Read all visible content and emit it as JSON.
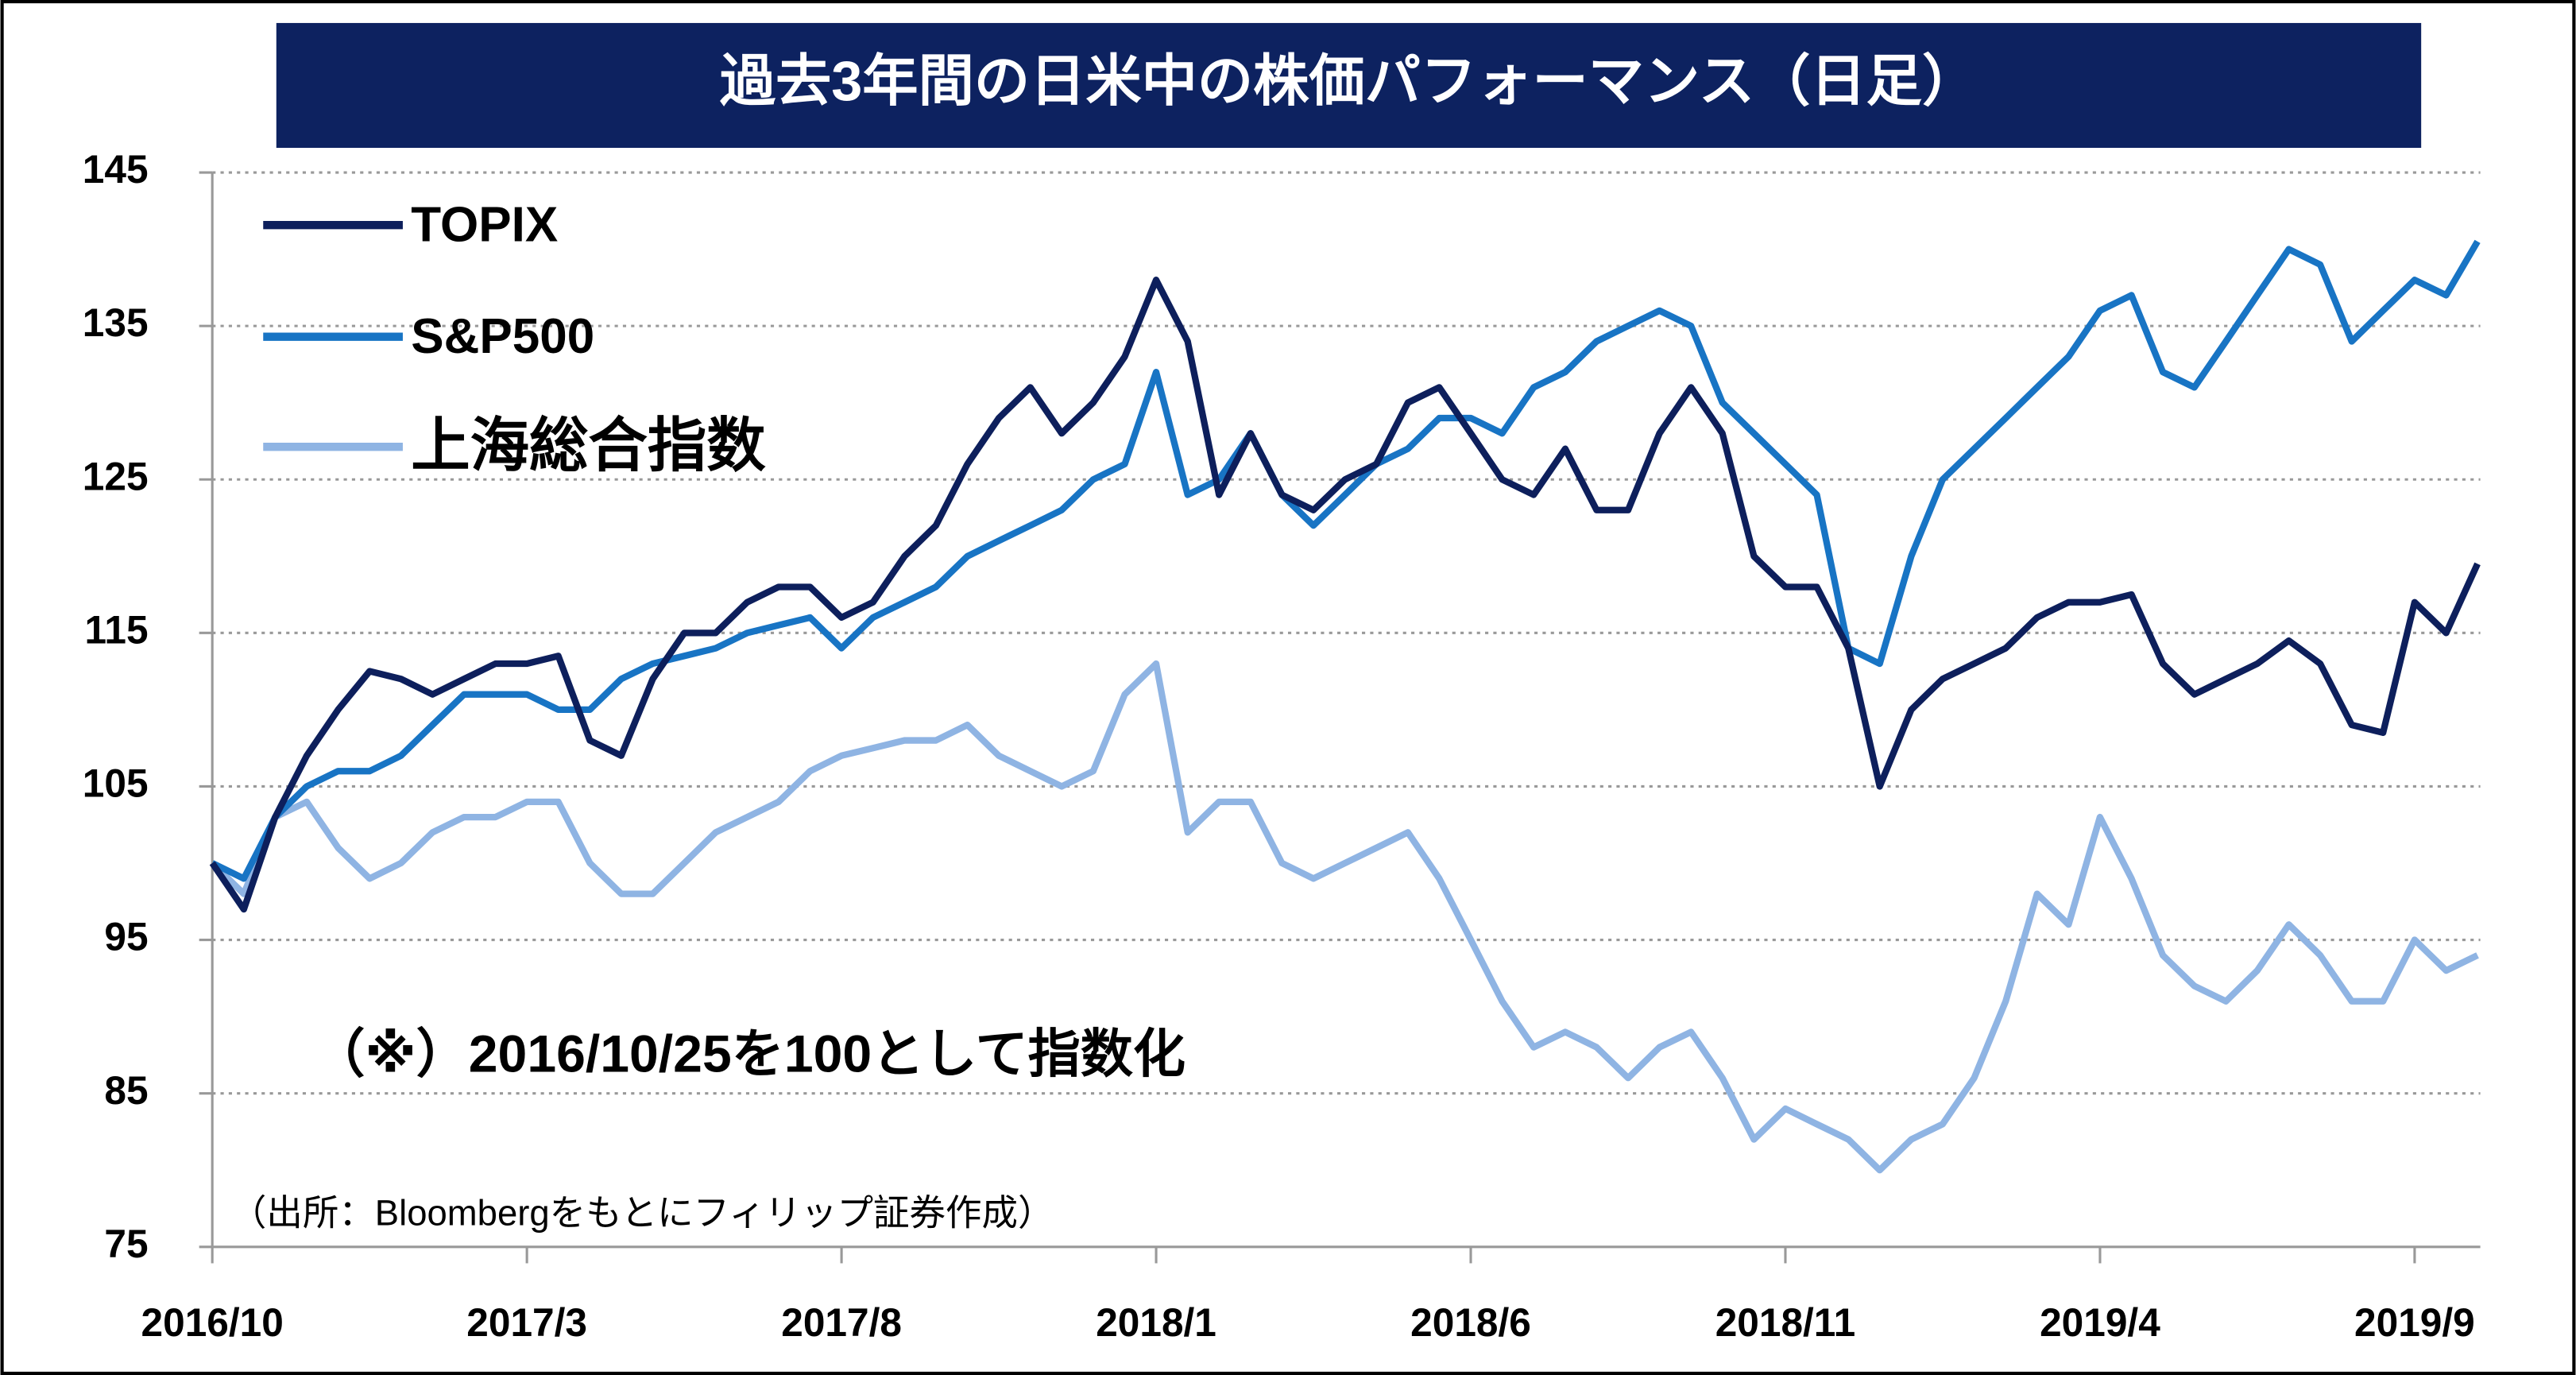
{
  "chart_data": {
    "type": "line",
    "title": "過去3年間の日米中の株価パフォーマンス（日足）",
    "annotations": [
      "（※）2016/10/25を100として指数化",
      "（出所：Bloombergをもとにフィリップ証券作成）"
    ],
    "categories": [
      "2016/10",
      null,
      null,
      null,
      null,
      null,
      null,
      null,
      null,
      null,
      "2017/3",
      null,
      null,
      null,
      null,
      null,
      null,
      null,
      null,
      null,
      "2017/8",
      null,
      null,
      null,
      null,
      null,
      null,
      null,
      null,
      null,
      "2018/1",
      null,
      null,
      null,
      null,
      null,
      null,
      null,
      null,
      null,
      "2018/6",
      null,
      null,
      null,
      null,
      null,
      null,
      null,
      null,
      null,
      "2018/11",
      null,
      null,
      null,
      null,
      null,
      null,
      null,
      null,
      null,
      "2019/4",
      null,
      null,
      null,
      null,
      null,
      null,
      null,
      null,
      null,
      "2019/9",
      null,
      null
    ],
    "series": [
      {
        "name": "TOPIX",
        "color": "#0d1f5c",
        "values": [
          100,
          97,
          103,
          107,
          110,
          112.5,
          112,
          111,
          112,
          113,
          113,
          113.5,
          108,
          107,
          112,
          115,
          115,
          117,
          118,
          118,
          116,
          117,
          120,
          122,
          126,
          129,
          131,
          128,
          130,
          133,
          138,
          134,
          124,
          128,
          124,
          123,
          125,
          126,
          130,
          131,
          128,
          125,
          124,
          127,
          123,
          123,
          128,
          131,
          128,
          120,
          118,
          118,
          114,
          105,
          110,
          112,
          113,
          114,
          116,
          117,
          117,
          117.5,
          113,
          111,
          112,
          113,
          114.5,
          113,
          109,
          108.5,
          117,
          115,
          119.5
        ]
      },
      {
        "name": "S&P500",
        "color": "#1874c4",
        "values": [
          100,
          99,
          103,
          105,
          106,
          106,
          107,
          109,
          111,
          111,
          111,
          110,
          110,
          112,
          113,
          113.5,
          114,
          115,
          115.5,
          116,
          114,
          116,
          117,
          118,
          120,
          121,
          122,
          123,
          125,
          126,
          132,
          124,
          125,
          128,
          124,
          122,
          124,
          126,
          127,
          129,
          129,
          128,
          131,
          132,
          134,
          135,
          136,
          135,
          130,
          128,
          126,
          124,
          114,
          113,
          120,
          125,
          127,
          129,
          131,
          133,
          136,
          137,
          132,
          131,
          134,
          137,
          140,
          139,
          134,
          136,
          138,
          137,
          140.5
        ]
      },
      {
        "name": "上海総合指数",
        "color": "#8fb4e3",
        "values": [
          100,
          98,
          103,
          104,
          101,
          99,
          100,
          102,
          103,
          103,
          104,
          104,
          100,
          98,
          98,
          100,
          102,
          103,
          104,
          106,
          107,
          107.5,
          108,
          108,
          109,
          107,
          106,
          105,
          106,
          111,
          113,
          102,
          104,
          104,
          100,
          99,
          100,
          101,
          102,
          99,
          95,
          91,
          88,
          89,
          88,
          86,
          88,
          89,
          86,
          82,
          84,
          83,
          82,
          80,
          82,
          83,
          86,
          91,
          98,
          96,
          103,
          99,
          94,
          92,
          91,
          93,
          96,
          94,
          91,
          91,
          95,
          93,
          94
        ]
      }
    ],
    "ylim": [
      75,
      145
    ],
    "yticks": [
      75,
      85,
      95,
      105,
      115,
      125,
      135,
      145
    ],
    "grid": true,
    "legend": "top-left"
  }
}
